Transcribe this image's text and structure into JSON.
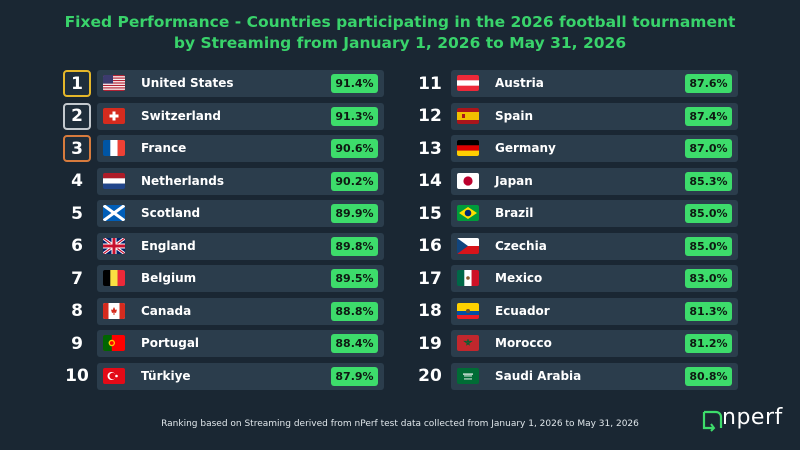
{
  "title_line1": "Fixed Performance - Countries participating in the 2026 football tournament",
  "title_line2": "by Streaming from January 1, 2026 to May 31, 2026",
  "footnote": "Ranking based on Streaming derived from nPerf test data collected from January 1, 2026 to May 31, 2026",
  "logo_text": "nperf",
  "colors": {
    "background": "#1a2733",
    "title": "#39d36b",
    "value_badge": "#3ddc6b",
    "gold": "#e5b72a",
    "silver": "#c3c9ce",
    "bronze": "#d77b3d"
  },
  "chart_data": {
    "type": "table",
    "rows": [
      {
        "rank": "1",
        "country": "United States",
        "value": "91.4%",
        "flag": "us"
      },
      {
        "rank": "2",
        "country": "Switzerland",
        "value": "91.3%",
        "flag": "ch"
      },
      {
        "rank": "3",
        "country": "France",
        "value": "90.6%",
        "flag": "fr"
      },
      {
        "rank": "4",
        "country": "Netherlands",
        "value": "90.2%",
        "flag": "nl"
      },
      {
        "rank": "5",
        "country": "Scotland",
        "value": "89.9%",
        "flag": "sco"
      },
      {
        "rank": "6",
        "country": "England",
        "value": "89.8%",
        "flag": "gb"
      },
      {
        "rank": "7",
        "country": "Belgium",
        "value": "89.5%",
        "flag": "be"
      },
      {
        "rank": "8",
        "country": "Canada",
        "value": "88.8%",
        "flag": "ca"
      },
      {
        "rank": "9",
        "country": "Portugal",
        "value": "88.4%",
        "flag": "pt"
      },
      {
        "rank": "10",
        "country": "Türkiye",
        "value": "87.9%",
        "flag": "tr"
      },
      {
        "rank": "11",
        "country": "Austria",
        "value": "87.6%",
        "flag": "at"
      },
      {
        "rank": "12",
        "country": "Spain",
        "value": "87.4%",
        "flag": "es"
      },
      {
        "rank": "13",
        "country": "Germany",
        "value": "87.0%",
        "flag": "de"
      },
      {
        "rank": "14",
        "country": "Japan",
        "value": "85.3%",
        "flag": "jp"
      },
      {
        "rank": "15",
        "country": "Brazil",
        "value": "85.0%",
        "flag": "br"
      },
      {
        "rank": "16",
        "country": "Czechia",
        "value": "85.0%",
        "flag": "cz"
      },
      {
        "rank": "17",
        "country": "Mexico",
        "value": "83.0%",
        "flag": "mx"
      },
      {
        "rank": "18",
        "country": "Ecuador",
        "value": "81.3%",
        "flag": "ec"
      },
      {
        "rank": "19",
        "country": "Morocco",
        "value": "81.2%",
        "flag": "ma"
      },
      {
        "rank": "20",
        "country": "Saudi Arabia",
        "value": "80.8%",
        "flag": "sa"
      }
    ]
  }
}
